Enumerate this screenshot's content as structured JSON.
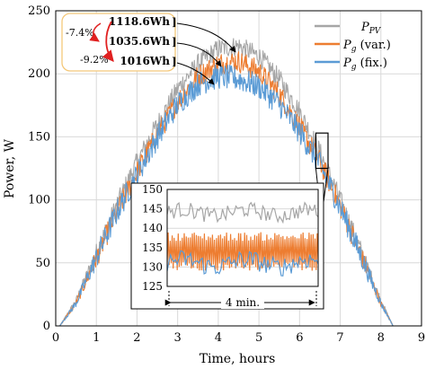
{
  "chart_data": {
    "type": "line",
    "xlabel": "Time, hours",
    "ylabel": "Power, W",
    "xlim": [
      0,
      9
    ],
    "ylim": [
      0,
      250
    ],
    "xticks": [
      "0",
      "1",
      "2",
      "3",
      "4",
      "5",
      "6",
      "7",
      "8",
      "9"
    ],
    "yticks": [
      "0",
      "50",
      "100",
      "150",
      "200",
      "250"
    ],
    "grid": true,
    "legend_position": "top-right",
    "series": [
      {
        "name": "P",
        "sub": "PV",
        "suffix": "",
        "color": "#a6a6a6",
        "x": [
          0.1,
          0.5,
          1,
          1.5,
          2,
          2.5,
          3,
          3.5,
          4,
          4.5,
          5,
          5.5,
          6,
          6.5,
          7,
          7.5,
          8,
          8.3
        ],
        "y": [
          0,
          20,
          58,
          96,
          130,
          160,
          188,
          208,
          220,
          222,
          214,
          196,
          170,
          138,
          100,
          60,
          20,
          0
        ]
      },
      {
        "name": "P",
        "sub": "g",
        "suffix": " (var.)",
        "color": "#ed7d31",
        "x": [
          0.1,
          0.5,
          1,
          1.5,
          2,
          2.5,
          3,
          3.5,
          4,
          4.5,
          5,
          5.5,
          6,
          6.5,
          7,
          7.5,
          8,
          8.3
        ],
        "y": [
          0,
          18,
          54,
          90,
          122,
          152,
          178,
          198,
          208,
          210,
          202,
          184,
          158,
          130,
          95,
          57,
          18,
          0
        ]
      },
      {
        "name": "P",
        "sub": "g",
        "suffix": " (fix.)",
        "color": "#5b9bd5",
        "x": [
          0.1,
          0.5,
          1,
          1.5,
          2,
          2.5,
          3,
          3.5,
          4,
          4.5,
          5,
          5.5,
          6,
          6.5,
          7,
          7.5,
          8,
          8.3
        ],
        "y": [
          0,
          18,
          54,
          90,
          120,
          150,
          176,
          192,
          198,
          196,
          190,
          176,
          154,
          128,
          94,
          56,
          18,
          0
        ]
      }
    ],
    "energy_annotations": [
      {
        "label": "1118.6Wh",
        "color": "#a6a6a6"
      },
      {
        "label": "1035.6Wh",
        "color": "#ed7d31"
      },
      {
        "label": "1016Wh",
        "color": "#5b9bd5"
      }
    ],
    "percent_annotations": [
      {
        "label": "-7.4%",
        "color": "#e02020"
      },
      {
        "label": "-9.2%",
        "color": "#e02020"
      }
    ],
    "zoom_box": {
      "x": [
        6.4,
        6.7
      ],
      "y": [
        125,
        153
      ]
    },
    "inset": {
      "ylim": [
        125,
        150
      ],
      "yticks": [
        "125",
        "130",
        "135",
        "140",
        "145",
        "150"
      ],
      "duration_label": "4 min.",
      "series_levels": [
        {
          "color": "#a6a6a6",
          "center": 144,
          "amplitude": 2.0
        },
        {
          "color": "#ed7d31",
          "center": 134,
          "amplitude": 5.0
        },
        {
          "color": "#5b9bd5",
          "center": 131,
          "amplitude": 2.5
        }
      ]
    }
  }
}
